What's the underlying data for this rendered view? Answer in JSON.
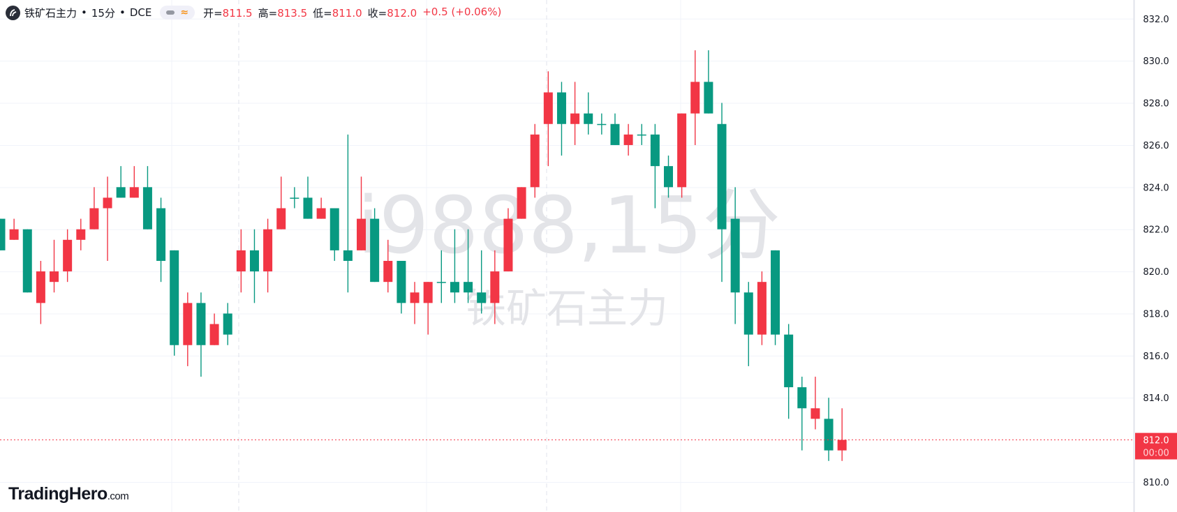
{
  "header": {
    "symbol": "铁矿石主力",
    "interval": "15分",
    "exchange": "DCE",
    "sep": "•",
    "ohlc": [
      {
        "key": "开=",
        "value": "811.5"
      },
      {
        "key": "高=",
        "value": "813.5"
      },
      {
        "key": "低=",
        "value": "811.0"
      },
      {
        "key": "收=",
        "value": "812.0"
      }
    ],
    "change": "+0.5 (+0.06%)",
    "pill_icon": "wave-icon",
    "pill_wave": "≈"
  },
  "watermark": {
    "line1": "i9888,15分",
    "line2": "铁矿石主力"
  },
  "brand": {
    "name": "TradingHero",
    "suffix": ".com"
  },
  "colors": {
    "up": "#F23645",
    "down": "#089981",
    "grid": "#f0f3fa",
    "axis_border": "#e0e3eb"
  },
  "chart_data": {
    "type": "candlestick",
    "title": "",
    "ylim": [
      809,
      832.8
    ],
    "y_ticks": [
      "832.0",
      "830.0",
      "828.0",
      "826.0",
      "824.0",
      "822.0",
      "820.0",
      "818.0",
      "816.0",
      "814.0",
      "810.0"
    ],
    "grid": true,
    "last_price": {
      "value": "812.0",
      "time": "00:00"
    },
    "candles_ohlc": [
      [
        822.5,
        822.5,
        821,
        821
      ],
      [
        821.5,
        822.5,
        821.5,
        822
      ],
      [
        822,
        822,
        819,
        819
      ],
      [
        818.5,
        820.5,
        817.5,
        820
      ],
      [
        819.5,
        821.5,
        819,
        820
      ],
      [
        820,
        822,
        819.5,
        821.5
      ],
      [
        821.5,
        822.5,
        821,
        822
      ],
      [
        822,
        824,
        822,
        823
      ],
      [
        823,
        824.5,
        820.5,
        823.5
      ],
      [
        824,
        825,
        823.5,
        823.5
      ],
      [
        823.5,
        825,
        823.5,
        824
      ],
      [
        824,
        825,
        822,
        822
      ],
      [
        823,
        823.5,
        819.5,
        820.5
      ],
      [
        821,
        821,
        816,
        816.5
      ],
      [
        816.5,
        819,
        815.5,
        818.5
      ],
      [
        818.5,
        819,
        815,
        816.5
      ],
      [
        816.5,
        818,
        816.5,
        817.5
      ],
      [
        818,
        818.5,
        816.5,
        817
      ],
      [
        820,
        822,
        819,
        821
      ],
      [
        821,
        822,
        818.5,
        820
      ],
      [
        820,
        822.5,
        819,
        822
      ],
      [
        822,
        824.5,
        822,
        823
      ],
      [
        823.5,
        824,
        823,
        823.5
      ],
      [
        823.5,
        824.5,
        822.5,
        822.5
      ],
      [
        822.5,
        823.5,
        822.5,
        823
      ],
      [
        823,
        823,
        820.5,
        821
      ],
      [
        821,
        826.5,
        819,
        820.5
      ],
      [
        821,
        824.5,
        821,
        822.5
      ],
      [
        822.5,
        823,
        819.5,
        819.5
      ],
      [
        819.5,
        821.5,
        819,
        820.5
      ],
      [
        820.5,
        820.5,
        818,
        818.5
      ],
      [
        818.5,
        819.5,
        817.5,
        819
      ],
      [
        818.5,
        819.5,
        817,
        819.5
      ],
      [
        819.5,
        821,
        818.5,
        819.5
      ],
      [
        819.5,
        822,
        818.5,
        819
      ],
      [
        819.5,
        822,
        818.5,
        819
      ],
      [
        819,
        821,
        818,
        818.5
      ],
      [
        818.5,
        821,
        817.5,
        820
      ],
      [
        820,
        823,
        820,
        822.5
      ],
      [
        822.5,
        824,
        822.5,
        824
      ],
      [
        824,
        827,
        823.5,
        826.5
      ],
      [
        827,
        829.5,
        825,
        828.5
      ],
      [
        828.5,
        829,
        825.5,
        827
      ],
      [
        827,
        829,
        826,
        827.5
      ],
      [
        827.5,
        828.5,
        826.5,
        827
      ],
      [
        827,
        827.5,
        826.5,
        827
      ],
      [
        827,
        827.5,
        826,
        826
      ],
      [
        826,
        827,
        825.5,
        826.5
      ],
      [
        826.5,
        827,
        826,
        826.5
      ],
      [
        826.5,
        827,
        823,
        825
      ],
      [
        825,
        825.5,
        823.5,
        824
      ],
      [
        824,
        827.5,
        823.5,
        827.5
      ],
      [
        827.5,
        830.5,
        826,
        829
      ],
      [
        829,
        830.5,
        827.5,
        827.5
      ],
      [
        827,
        828,
        819.5,
        822
      ],
      [
        822.5,
        824,
        817.5,
        819
      ],
      [
        819,
        819.5,
        815.5,
        817
      ],
      [
        817,
        820,
        816.5,
        819.5
      ],
      [
        821,
        821,
        816.5,
        817
      ],
      [
        817,
        817.5,
        813,
        814.5
      ],
      [
        814.5,
        815,
        811.5,
        813.5
      ],
      [
        813,
        815,
        812.5,
        813.5
      ],
      [
        813,
        814,
        811,
        811.5
      ],
      [
        811.5,
        813.5,
        811,
        812
      ]
    ]
  }
}
